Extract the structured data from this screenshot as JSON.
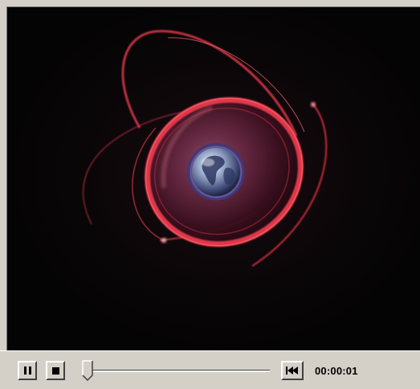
{
  "player": {
    "time_display": "00:00:01",
    "playback_state": "playing",
    "seek_fraction": 0.0,
    "controls": [
      {
        "name": "pause-button",
        "icon": "pause-icon"
      },
      {
        "name": "stop-button",
        "icon": "stop-icon"
      },
      {
        "name": "rewind-button",
        "icon": "skip-to-start-icon"
      }
    ]
  },
  "colors": {
    "chrome": "#d4d0c8",
    "video_background": "#050505",
    "orbit_red": "#c8243a",
    "globe_blue": "#6a7fb0"
  }
}
